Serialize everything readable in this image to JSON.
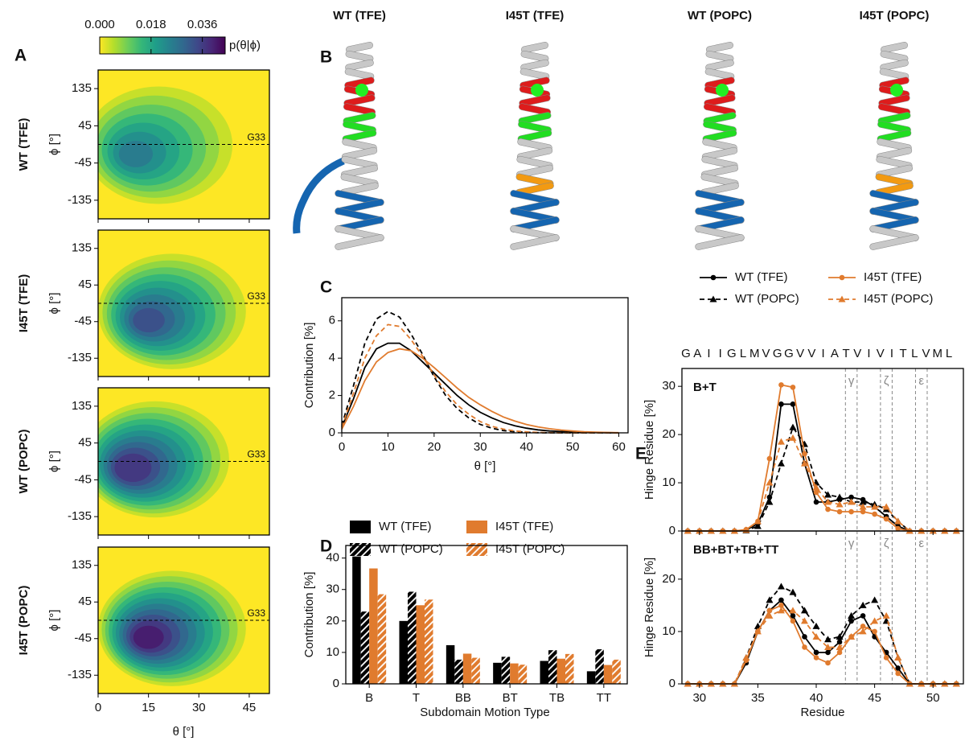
{
  "chart_data": [
    {
      "type": "contour",
      "panel_label": "A",
      "xlabel": "θ [°]",
      "ylabel": "ϕ [°]",
      "xlim": [
        0,
        51
      ],
      "xticks": [
        0,
        15,
        30,
        45
      ],
      "ylim": [
        -180,
        180
      ],
      "yticks": [
        135,
        45,
        -45,
        -135
      ],
      "reference_line": {
        "label": "G33",
        "y": 0
      },
      "colorbar": {
        "label": "p(θ|ϕ)",
        "lim": [
          0,
          0.044
        ],
        "ticks": [
          {
            "value": 0,
            "label": "0.000"
          },
          {
            "value": 0.018,
            "label": "0.018"
          },
          {
            "value": 0.036,
            "label": "0.036"
          }
        ]
      },
      "panels": [
        {
          "title": "WT (TFE)",
          "peak": {
            "theta": 10,
            "phi": -27,
            "p": 0.026
          }
        },
        {
          "title": "I45T (TFE)",
          "peak": {
            "theta": 14,
            "phi": -45,
            "p": 0.034
          }
        },
        {
          "title": "WT (POPC)",
          "peak": {
            "theta": 9,
            "phi": -20,
            "p": 0.04
          }
        },
        {
          "title": "I45T (POPC)",
          "peak": {
            "theta": 14,
            "phi": -45,
            "p": 0.042
          }
        }
      ]
    },
    {
      "type": "image",
      "panel_label": "B",
      "titles": [
        "WT (TFE)",
        "I45T (TFE)",
        "WT (POPC)",
        "I45T (POPC)"
      ]
    },
    {
      "type": "line",
      "panel_label": "C",
      "xlabel": "θ [°]",
      "ylabel": "Contribution [%]",
      "x": [
        0,
        2.5,
        5,
        7.5,
        10,
        12.5,
        15,
        17.5,
        20,
        22.5,
        25,
        27.5,
        30,
        32.5,
        35,
        37.5,
        40,
        42.5,
        45,
        47.5,
        50,
        52.5,
        55,
        57.5,
        60
      ],
      "xlim": [
        0,
        62
      ],
      "xticks": [
        0,
        10,
        20,
        30,
        40,
        50,
        60
      ],
      "ylim": [
        0,
        7.24
      ],
      "yticks": [
        0,
        2,
        4,
        6
      ],
      "series": [
        {
          "color": "#000000",
          "linestyle": "solid",
          "values": [
            0.3,
            1.8,
            3.5,
            4.5,
            4.8,
            4.8,
            4.4,
            3.8,
            3.2,
            2.6,
            2.0,
            1.5,
            1.1,
            0.8,
            0.55,
            0.38,
            0.25,
            0.16,
            0.1,
            0.07,
            0.05,
            0.03,
            0.02,
            0.01,
            0
          ]
        },
        {
          "color": "#000000",
          "linestyle": "dashed",
          "values": [
            0.4,
            2.5,
            4.8,
            6.1,
            6.5,
            6.2,
            5.3,
            4.2,
            3.0,
            2.0,
            1.3,
            0.8,
            0.45,
            0.25,
            0.12,
            0.06,
            0.03,
            0.01,
            0,
            0,
            0,
            0,
            0,
            0,
            0
          ]
        },
        {
          "color": "#e07b2e",
          "linestyle": "solid",
          "values": [
            0.2,
            1.4,
            2.8,
            3.8,
            4.3,
            4.5,
            4.4,
            4.0,
            3.5,
            2.95,
            2.4,
            1.9,
            1.5,
            1.15,
            0.85,
            0.63,
            0.45,
            0.32,
            0.22,
            0.15,
            0.1,
            0.06,
            0.04,
            0.02,
            0.01
          ]
        },
        {
          "color": "#e07b2e",
          "linestyle": "dashed",
          "values": [
            0.3,
            2.1,
            4.0,
            5.2,
            5.8,
            5.7,
            5.0,
            4.1,
            3.1,
            2.2,
            1.5,
            1.0,
            0.6,
            0.35,
            0.2,
            0.1,
            0.05,
            0.02,
            0.01,
            0,
            0,
            0,
            0,
            0,
            0
          ]
        }
      ]
    },
    {
      "type": "bar",
      "panel_label": "D",
      "xlabel": "Subdomain Motion Type",
      "ylabel": "Contribution [%]",
      "legend": "top",
      "categories": [
        "B",
        "T",
        "BB",
        "BT",
        "TB",
        "TT"
      ],
      "ylim": [
        0,
        44
      ],
      "yticks": [
        0,
        10,
        20,
        30,
        40
      ],
      "series": [
        {
          "name": "WT (TFE)",
          "color": "#000000",
          "hatch": false,
          "values": [
            40.5,
            20,
            12.3,
            6.7,
            7.3,
            4
          ]
        },
        {
          "name": "WT (POPC)",
          "color": "#000000",
          "hatch": true,
          "values": [
            23,
            29.3,
            7.7,
            8.6,
            10.7,
            11
          ]
        },
        {
          "name": "I45T (TFE)",
          "color": "#e07b2e",
          "hatch": false,
          "values": [
            36.7,
            25,
            9.6,
            6.5,
            8,
            6
          ]
        },
        {
          "name": "I45T (POPC)",
          "color": "#e07b2e",
          "hatch": true,
          "values": [
            28.5,
            26.8,
            8.3,
            6.1,
            9.5,
            7.7
          ]
        }
      ]
    },
    {
      "type": "line",
      "panel_label": "E",
      "xlabel": "Residue",
      "ylabel": "Hinge Residue [%]",
      "legend": "top",
      "sequence": [
        "G",
        "A",
        "I",
        "I",
        "G",
        "L",
        "M",
        "V",
        "G",
        "G",
        "V",
        "V",
        "I",
        "A",
        "T",
        "V",
        "I",
        "V",
        "I",
        "T",
        "L",
        "V",
        "M",
        "L"
      ],
      "x": [
        29,
        30,
        31,
        32,
        33,
        34,
        35,
        36,
        37,
        38,
        39,
        40,
        41,
        42,
        43,
        44,
        45,
        46,
        47,
        48,
        49,
        50,
        51,
        52
      ],
      "xlim": [
        28.5,
        52.6
      ],
      "xticks": [
        30,
        35,
        40,
        45,
        50
      ],
      "regions": [
        {
          "label": "γ",
          "x": [
            42.5,
            43.5
          ]
        },
        {
          "label": "ζ",
          "x": [
            45.5,
            46.5
          ]
        },
        {
          "label": "ε",
          "x": [
            48.5,
            49.5
          ]
        }
      ],
      "subplots": [
        {
          "annotation": "B+T",
          "ylim": [
            0,
            33.7
          ],
          "yticks": [
            0,
            10,
            20,
            30
          ],
          "series": [
            {
              "name": "WT (TFE)",
              "color": "#000000",
              "linestyle": "solid",
              "marker": "circle",
              "values": [
                0,
                0,
                0,
                0,
                0,
                0.2,
                1.5,
                7,
                26.3,
                26.3,
                14,
                6,
                6,
                6.5,
                7,
                6.5,
                5,
                3,
                1,
                0,
                0,
                0,
                0,
                0
              ]
            },
            {
              "name": "WT (POPC)",
              "color": "#000000",
              "linestyle": "dashed",
              "marker": "triangle",
              "values": [
                0,
                0,
                0,
                0,
                0,
                0.1,
                1,
                6,
                14,
                21.5,
                18,
                10,
                7.5,
                7,
                6,
                6,
                5.5,
                4.5,
                2,
                0,
                0,
                0,
                0,
                0
              ]
            },
            {
              "name": "I45T (TFE)",
              "color": "#e07b2e",
              "linestyle": "solid",
              "marker": "circle",
              "values": [
                0,
                0,
                0,
                0,
                0,
                0.3,
                2,
                15,
                30.3,
                29.8,
                16,
                8,
                4.5,
                4,
                4,
                4,
                3.5,
                2.5,
                0.5,
                0,
                0,
                0,
                0,
                0
              ]
            },
            {
              "name": "I45T (POPC)",
              "color": "#e07b2e",
              "linestyle": "dashed",
              "marker": "triangle",
              "values": [
                0,
                0,
                0,
                0,
                0,
                0.2,
                2,
                10,
                18.5,
                19.3,
                14,
                9,
                6,
                5.5,
                6,
                5,
                5,
                5,
                2,
                0,
                0,
                0,
                0,
                0
              ]
            }
          ]
        },
        {
          "annotation": "BB+BT+TB+TT",
          "ylim": [
            0,
            29.2
          ],
          "yticks": [
            0,
            10,
            20
          ],
          "series": [
            {
              "color": "#000000",
              "linestyle": "solid",
              "marker": "circle",
              "values": [
                0,
                0,
                0,
                0,
                0,
                4,
                10,
                14,
                16,
                13,
                9,
                6,
                6,
                8,
                12,
                13,
                9,
                6,
                3,
                0,
                0,
                0,
                0,
                0
              ]
            },
            {
              "color": "#000000",
              "linestyle": "dashed",
              "marker": "triangle",
              "values": [
                0,
                0,
                0,
                0,
                0,
                5,
                11,
                16,
                18.6,
                17.5,
                14,
                11,
                8.5,
                9,
                13,
                15,
                16,
                12,
                5,
                0,
                0,
                0,
                0,
                0
              ]
            },
            {
              "color": "#e07b2e",
              "linestyle": "solid",
              "marker": "circle",
              "values": [
                0,
                0,
                0,
                0,
                0,
                4.5,
                10,
                14,
                15,
                12,
                7,
                5,
                4,
                6,
                9,
                11,
                10,
                5,
                2,
                0,
                0,
                0,
                0,
                0
              ]
            },
            {
              "color": "#e07b2e",
              "linestyle": "dashed",
              "marker": "triangle",
              "values": [
                0,
                0,
                0,
                0,
                0,
                5,
                10,
                13,
                14,
                14,
                12,
                9,
                7,
                7,
                9,
                10,
                12,
                13,
                5,
                0,
                0,
                0,
                0,
                0
              ]
            }
          ]
        }
      ]
    }
  ]
}
